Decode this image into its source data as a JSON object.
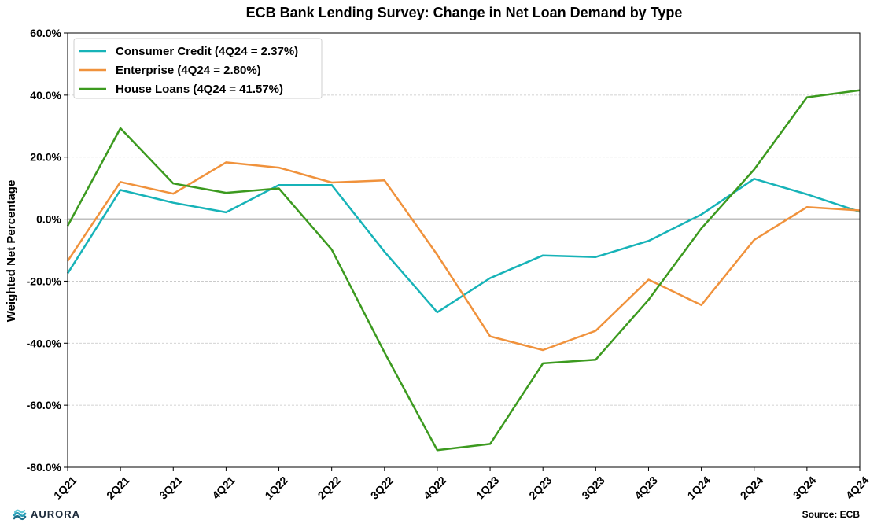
{
  "chart_data": {
    "type": "line",
    "title": "ECB Bank Lending Survey: Change in Net Loan Demand by Type",
    "ylabel": "Weighted Net Percentage",
    "xlabel": "",
    "categories": [
      "1Q21",
      "2Q21",
      "3Q21",
      "4Q21",
      "1Q22",
      "2Q22",
      "3Q22",
      "4Q22",
      "1Q23",
      "2Q23",
      "3Q23",
      "4Q23",
      "1Q24",
      "2Q24",
      "3Q24",
      "4Q24"
    ],
    "ylim": [
      -80,
      60
    ],
    "yticks": [
      -80,
      -60,
      -40,
      -20,
      0,
      20,
      40,
      60
    ],
    "ytick_labels": [
      "-80.0%",
      "-60.0%",
      "-40.0%",
      "-20.0%",
      "0.0%",
      "20.0%",
      "40.0%",
      "60.0%"
    ],
    "grid": "horizontal dashed",
    "zero_line": true,
    "legend_position": "top-left",
    "series": [
      {
        "name": "Consumer Credit (4Q24 = 2.37%)",
        "color": "#17b3b8",
        "values": [
          -17.5,
          9.4,
          5.3,
          2.2,
          11.0,
          11.0,
          -10.5,
          -30.0,
          -19.0,
          -11.7,
          -12.2,
          -7.0,
          1.5,
          13.0,
          8.0,
          2.37
        ]
      },
      {
        "name": "Enterprise (4Q24 = 2.80%)",
        "color": "#f0923c",
        "values": [
          -13.5,
          12.0,
          8.2,
          18.3,
          16.6,
          11.8,
          12.5,
          -11.5,
          -37.8,
          -42.2,
          -36.0,
          -19.5,
          -27.7,
          -6.7,
          3.9,
          2.8
        ]
      },
      {
        "name": "House Loans (4Q24 = 41.57%)",
        "color": "#3c9a1f",
        "values": [
          -2.2,
          29.3,
          11.5,
          8.5,
          9.9,
          -9.8,
          -43.0,
          -74.5,
          -72.5,
          -46.5,
          -45.3,
          -26.0,
          -3.0,
          16.0,
          39.3,
          41.57
        ]
      }
    ]
  },
  "footer": {
    "brand": "AURORA",
    "brand_icon": "aurora-wave-icon",
    "source": "Source: ECB"
  }
}
